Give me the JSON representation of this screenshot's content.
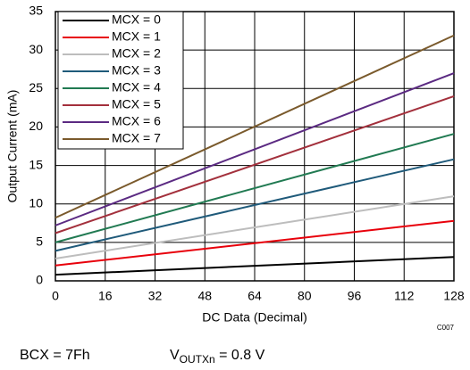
{
  "chart_data": {
    "type": "line",
    "x_label": "DC Data (Decimal)",
    "y_label": "Output Current (mA)",
    "x": [
      0,
      128
    ],
    "series": [
      {
        "name": "MCX = 0",
        "color": "#000000",
        "values": [
          0.8,
          3.1
        ]
      },
      {
        "name": "MCX = 1",
        "color": "#e8000b",
        "values": [
          2.0,
          7.8
        ]
      },
      {
        "name": "MCX = 2",
        "color": "#bdbdbd",
        "values": [
          2.9,
          11.0
        ]
      },
      {
        "name": "MCX = 3",
        "color": "#1f5a7a",
        "values": [
          3.9,
          15.8
        ]
      },
      {
        "name": "MCX = 4",
        "color": "#217a52",
        "values": [
          5.0,
          19.1
        ]
      },
      {
        "name": "MCX = 5",
        "color": "#a3303c",
        "values": [
          6.2,
          24.0
        ]
      },
      {
        "name": "MCX = 6",
        "color": "#5b2a82",
        "values": [
          7.2,
          27.0
        ]
      },
      {
        "name": "MCX = 7",
        "color": "#7a5a2c",
        "values": [
          8.2,
          31.9
        ]
      }
    ],
    "xlim": [
      0,
      128
    ],
    "xticks": [
      0,
      16,
      32,
      48,
      64,
      80,
      96,
      112,
      128
    ],
    "ylim": [
      0,
      35
    ],
    "yticks": [
      0,
      5,
      10,
      15,
      20,
      25,
      30,
      35
    ],
    "grid": true,
    "legend": "top-left",
    "figure_id": "C007",
    "notes": [
      {
        "text": "BCX = 7Fh"
      },
      {
        "base": "V",
        "sub": "OUTXn",
        "rest": " = 0.8 V"
      }
    ]
  }
}
